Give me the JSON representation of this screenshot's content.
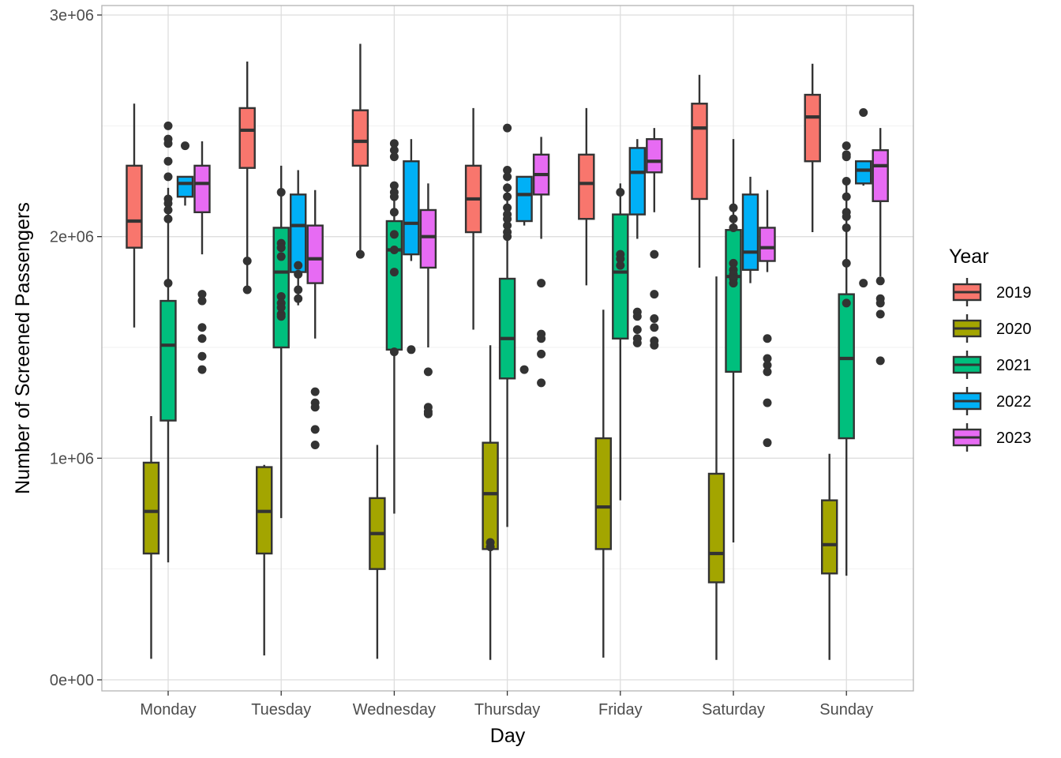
{
  "chart_data": {
    "type": "boxplot",
    "title": "",
    "xlabel": "Day",
    "ylabel": "Number of Screened Passengers",
    "ylim": [
      -45000,
      3045000
    ],
    "y_ticks": [
      0,
      1000000,
      2000000,
      3000000
    ],
    "y_tick_labels": [
      "0e+00",
      "1e+06",
      "2e+06",
      "3e+06"
    ],
    "grid": true,
    "legend_title": "Year",
    "legend_position": "right",
    "categories": [
      "Monday",
      "Tuesday",
      "Wednesday",
      "Thursday",
      "Friday",
      "Saturday",
      "Sunday"
    ],
    "series": [
      {
        "name": "2019",
        "color": "#F8766D",
        "boxes": [
          {
            "min": 1590000,
            "q1": 1950000,
            "median": 2070000,
            "q3": 2320000,
            "max": 2600000,
            "outliers": []
          },
          {
            "min": 1760000,
            "q1": 2310000,
            "median": 2480000,
            "q3": 2580000,
            "max": 2790000,
            "outliers": [
              1890000,
              1760000
            ]
          },
          {
            "min": 1930000,
            "q1": 2320000,
            "median": 2430000,
            "q3": 2570000,
            "max": 2870000,
            "outliers": [
              1920000
            ]
          },
          {
            "min": 1580000,
            "q1": 2020000,
            "median": 2170000,
            "q3": 2320000,
            "max": 2580000,
            "outliers": []
          },
          {
            "min": 1780000,
            "q1": 2080000,
            "median": 2240000,
            "q3": 2370000,
            "max": 2580000,
            "outliers": []
          },
          {
            "min": 1860000,
            "q1": 2170000,
            "median": 2490000,
            "q3": 2600000,
            "max": 2730000,
            "outliers": []
          },
          {
            "min": 2020000,
            "q1": 2340000,
            "median": 2540000,
            "q3": 2640000,
            "max": 2780000,
            "outliers": []
          }
        ]
      },
      {
        "name": "2020",
        "color": "#A3A500",
        "boxes": [
          {
            "min": 95000,
            "q1": 570000,
            "median": 760000,
            "q3": 980000,
            "max": 1190000,
            "outliers": []
          },
          {
            "min": 110000,
            "q1": 570000,
            "median": 760000,
            "q3": 960000,
            "max": 970000,
            "outliers": []
          },
          {
            "min": 95000,
            "q1": 500000,
            "median": 660000,
            "q3": 820000,
            "max": 1060000,
            "outliers": []
          },
          {
            "min": 90000,
            "q1": 590000,
            "median": 840000,
            "q3": 1070000,
            "max": 1510000,
            "outliers": [
              620000,
              600000
            ]
          },
          {
            "min": 100000,
            "q1": 590000,
            "median": 780000,
            "q3": 1090000,
            "max": 1670000,
            "outliers": []
          },
          {
            "min": 90000,
            "q1": 440000,
            "median": 570000,
            "q3": 930000,
            "max": 1820000,
            "outliers": []
          },
          {
            "min": 90000,
            "q1": 480000,
            "median": 610000,
            "q3": 810000,
            "max": 1020000,
            "outliers": []
          }
        ]
      },
      {
        "name": "2021",
        "color": "#00BF7D",
        "boxes": [
          {
            "min": 530000,
            "q1": 1170000,
            "median": 1510000,
            "q3": 1710000,
            "max": 2220000,
            "outliers": [
              2500000,
              2440000,
              2420000,
              2340000,
              2270000,
              2170000,
              2150000,
              2120000,
              2080000,
              1790000
            ]
          },
          {
            "min": 730000,
            "q1": 1500000,
            "median": 1840000,
            "q3": 2040000,
            "max": 2320000,
            "outliers": [
              2200000,
              1970000,
              1950000,
              1910000,
              1730000,
              1700000,
              1680000,
              1650000,
              1640000
            ]
          },
          {
            "min": 750000,
            "q1": 1490000,
            "median": 1940000,
            "q3": 2070000,
            "max": 2200000,
            "outliers": [
              2420000,
              2390000,
              2360000,
              2230000,
              2200000,
              2180000,
              2110000,
              2010000,
              1940000,
              1840000,
              1480000
            ]
          },
          {
            "min": 690000,
            "q1": 1360000,
            "median": 1540000,
            "q3": 1810000,
            "max": 2240000,
            "outliers": [
              2490000,
              2300000,
              2270000,
              2220000,
              2180000,
              2130000,
              2100000,
              2080000,
              2050000,
              2020000,
              2000000
            ]
          },
          {
            "min": 810000,
            "q1": 1540000,
            "median": 1840000,
            "q3": 2100000,
            "max": 2240000,
            "outliers": [
              2200000,
              1920000,
              1900000,
              1870000
            ]
          },
          {
            "min": 620000,
            "q1": 1390000,
            "median": 1820000,
            "q3": 2030000,
            "max": 2440000,
            "outliers": [
              2130000,
              2080000,
              2040000,
              1880000,
              1850000,
              1830000,
              1810000,
              1790000
            ]
          },
          {
            "min": 470000,
            "q1": 1090000,
            "median": 1450000,
            "q3": 1740000,
            "max": 2240000,
            "outliers": [
              2410000,
              2370000,
              2360000,
              2250000,
              2180000,
              2110000,
              2090000,
              2040000,
              1880000,
              1700000
            ]
          }
        ]
      },
      {
        "name": "2022",
        "color": "#00B0F6",
        "boxes": [
          {
            "min": 2140000,
            "q1": 2180000,
            "median": 2240000,
            "q3": 2270000,
            "max": 2270000,
            "outliers": [
              2410000
            ]
          },
          {
            "min": 1690000,
            "q1": 1840000,
            "median": 2050000,
            "q3": 2190000,
            "max": 2300000,
            "outliers": [
              1870000,
              1830000,
              1760000,
              1720000
            ]
          },
          {
            "min": 1890000,
            "q1": 1920000,
            "median": 2060000,
            "q3": 2340000,
            "max": 2440000,
            "outliers": [
              1490000
            ]
          },
          {
            "min": 2050000,
            "q1": 2070000,
            "median": 2190000,
            "q3": 2270000,
            "max": 2270000,
            "outliers": [
              1400000
            ]
          },
          {
            "min": 1990000,
            "q1": 2100000,
            "median": 2290000,
            "q3": 2400000,
            "max": 2440000,
            "outliers": [
              1660000,
              1640000,
              1580000,
              1540000,
              1520000
            ]
          },
          {
            "min": 1790000,
            "q1": 1850000,
            "median": 1930000,
            "q3": 2190000,
            "max": 2270000,
            "outliers": []
          },
          {
            "min": 2230000,
            "q1": 2240000,
            "median": 2300000,
            "q3": 2340000,
            "max": 2340000,
            "outliers": [
              2560000,
              1790000
            ]
          }
        ]
      },
      {
        "name": "2023",
        "color": "#E76BF3",
        "boxes": [
          {
            "min": 1920000,
            "q1": 2110000,
            "median": 2240000,
            "q3": 2320000,
            "max": 2430000,
            "outliers": [
              1740000,
              1710000,
              1590000,
              1540000,
              1460000,
              1400000
            ]
          },
          {
            "min": 1540000,
            "q1": 1790000,
            "median": 1900000,
            "q3": 2050000,
            "max": 2210000,
            "outliers": [
              1300000,
              1250000,
              1230000,
              1130000,
              1060000
            ]
          },
          {
            "min": 1500000,
            "q1": 1860000,
            "median": 2000000,
            "q3": 2120000,
            "max": 2240000,
            "outliers": [
              1390000,
              1230000,
              1210000,
              1200000
            ]
          },
          {
            "min": 1990000,
            "q1": 2190000,
            "median": 2280000,
            "q3": 2370000,
            "max": 2450000,
            "outliers": [
              1790000,
              1560000,
              1540000,
              1470000,
              1340000
            ]
          },
          {
            "min": 2110000,
            "q1": 2290000,
            "median": 2340000,
            "q3": 2440000,
            "max": 2490000,
            "outliers": [
              1920000,
              1740000,
              1630000,
              1590000,
              1530000,
              1510000
            ]
          },
          {
            "min": 1840000,
            "q1": 1890000,
            "median": 1950000,
            "q3": 2040000,
            "max": 2210000,
            "outliers": [
              1540000,
              1450000,
              1420000,
              1390000,
              1250000,
              1070000
            ]
          },
          {
            "min": 1820000,
            "q1": 2160000,
            "median": 2320000,
            "q3": 2390000,
            "max": 2490000,
            "outliers": [
              1800000,
              1720000,
              1700000,
              1650000,
              1440000
            ]
          }
        ]
      }
    ]
  }
}
